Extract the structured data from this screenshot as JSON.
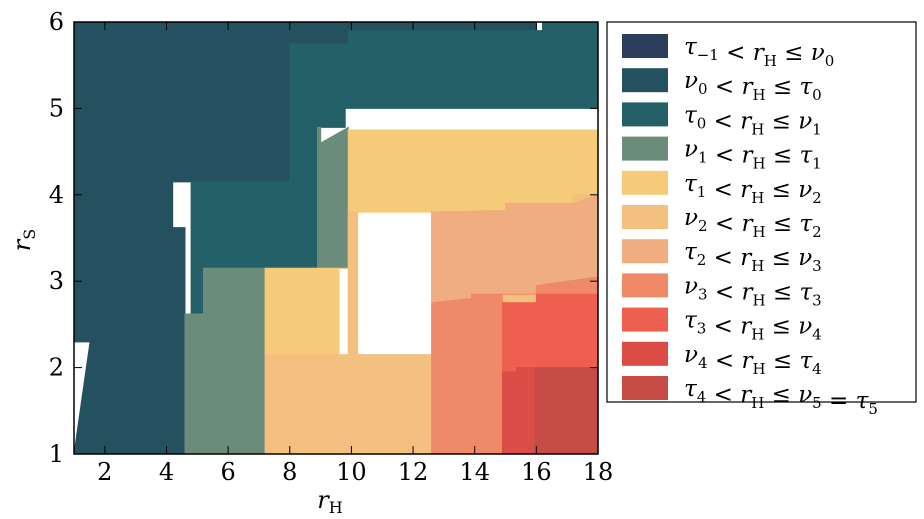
{
  "chart_data": {
    "type": "area",
    "title": "",
    "xlabel": "r_H",
    "ylabel": "r_S",
    "xlim": [
      1,
      18
    ],
    "ylim": [
      1,
      6
    ],
    "xticks": [
      "2",
      "4",
      "6",
      "8",
      "10",
      "12",
      "14",
      "16",
      "18"
    ],
    "yticks": [
      "1",
      "2",
      "3",
      "4",
      "5",
      "6"
    ],
    "legend_position": "right",
    "series": [
      {
        "name": "τ−1 < rH ≤ ν0",
        "color": "#2c3e5a"
      },
      {
        "name": "ν0 < rH ≤ τ0",
        "color": "#24505f"
      },
      {
        "name": "τ0 < rH ≤ ν1",
        "color": "#236068"
      },
      {
        "name": "ν1 < rH ≤ τ1",
        "color": "#6b8c7b"
      },
      {
        "name": "τ1 < rH ≤ ν2",
        "color": "#f5ca78"
      },
      {
        "name": "ν2 < rH ≤ τ2",
        "color": "#f4c07f"
      },
      {
        "name": "τ2 < rH ≤ ν3",
        "color": "#f0ad80"
      },
      {
        "name": "ν3 < rH ≤ τ3",
        "color": "#ef8a68"
      },
      {
        "name": "τ3 < rH ≤ ν4",
        "color": "#ef5f50"
      },
      {
        "name": "ν4 < rH ≤ τ4",
        "color": "#dd4d47"
      },
      {
        "name": "τ4 < rH ≤ ν5 = τ5",
        "color": "#c84c46"
      }
    ],
    "regions": [
      {
        "series": 0,
        "points": [
          [
            1,
            2.3
          ],
          [
            2.05,
            2.3
          ],
          [
            2.05,
            3.62
          ],
          [
            4.2,
            3.62
          ],
          [
            4.2,
            4.15
          ],
          [
            8,
            4.15
          ],
          [
            8,
            5.75
          ],
          [
            9.9,
            5.75
          ],
          [
            9.9,
            5.9
          ],
          [
            13.9,
            5.9
          ],
          [
            13.9,
            6
          ],
          [
            1,
            6
          ]
        ]
      },
      {
        "series": 1,
        "points": [
          [
            1,
            1
          ],
          [
            4.6,
            1
          ],
          [
            4.6,
            3.62
          ],
          [
            4.2,
            3.62
          ],
          [
            4.2,
            4.15
          ],
          [
            8,
            4.15
          ],
          [
            8,
            5.75
          ],
          [
            9.9,
            5.75
          ],
          [
            9.9,
            5.9
          ],
          [
            16,
            5.9
          ],
          [
            16,
            6
          ],
          [
            1,
            6
          ],
          [
            1,
            2.3
          ],
          [
            2.05,
            2.3
          ],
          [
            2.05,
            3.62
          ]
        ]
      },
      {
        "series": 2,
        "points": [
          [
            4.8,
            2.6
          ],
          [
            5.2,
            2.62
          ],
          [
            5.2,
            3.15
          ],
          [
            9.0,
            3.15
          ],
          [
            9.0,
            4.78
          ],
          [
            9.8,
            4.78
          ],
          [
            9.8,
            5.0
          ],
          [
            18,
            5.0
          ],
          [
            18,
            6
          ],
          [
            16.2,
            6
          ],
          [
            16.2,
            5.9
          ],
          [
            9.9,
            5.9
          ],
          [
            9.9,
            5.75
          ],
          [
            8,
            5.75
          ],
          [
            8,
            4.15
          ],
          [
            4.8,
            4.15
          ]
        ]
      },
      {
        "series": 3,
        "points": [
          [
            4.6,
            1
          ],
          [
            7.2,
            1
          ],
          [
            7.2,
            3.15
          ],
          [
            9.0,
            3.15
          ],
          [
            9.0,
            4.6
          ],
          [
            9.9,
            4.78
          ],
          [
            9.9,
            3.15
          ],
          [
            9.0,
            3.15
          ],
          [
            9.0,
            4.78
          ],
          [
            8.9,
            4.78
          ],
          [
            8.9,
            3.15
          ],
          [
            5.2,
            3.15
          ],
          [
            5.2,
            2.62
          ],
          [
            4.6,
            2.62
          ]
        ]
      },
      {
        "series": 4,
        "points": [
          [
            7.2,
            2.15
          ],
          [
            9.6,
            2.15
          ],
          [
            9.6,
            3.15
          ],
          [
            9.9,
            3.15
          ],
          [
            9.9,
            4.75
          ],
          [
            18,
            4.75
          ],
          [
            18,
            4.0
          ],
          [
            17.2,
            4.0
          ],
          [
            17.2,
            3.9
          ],
          [
            15.0,
            3.9
          ],
          [
            15.0,
            3.8
          ],
          [
            10.2,
            3.8
          ],
          [
            10.2,
            3.15
          ],
          [
            7.2,
            3.15
          ]
        ]
      },
      {
        "series": 5,
        "points": [
          [
            7.2,
            1
          ],
          [
            12.6,
            1
          ],
          [
            12.6,
            3.8
          ],
          [
            15.0,
            3.8
          ],
          [
            15.0,
            3.9
          ],
          [
            17.2,
            3.9
          ],
          [
            17.2,
            4.0
          ],
          [
            18,
            4.0
          ],
          [
            18,
            2.15
          ],
          [
            10.2,
            2.15
          ],
          [
            10.2,
            3.8
          ],
          [
            9.9,
            3.8
          ],
          [
            9.9,
            2.15
          ],
          [
            7.2,
            2.15
          ]
        ]
      },
      {
        "series": 6,
        "points": [
          [
            12.6,
            2.75
          ],
          [
            13.9,
            2.8
          ],
          [
            13.9,
            2.85
          ],
          [
            18,
            2.85
          ],
          [
            18,
            4.0
          ],
          [
            17.2,
            3.9
          ],
          [
            15.0,
            3.9
          ],
          [
            15.0,
            3.82
          ],
          [
            12.6,
            3.8
          ]
        ]
      },
      {
        "series": 7,
        "points": [
          [
            12.6,
            1
          ],
          [
            14.9,
            1
          ],
          [
            14.9,
            2.85
          ],
          [
            16,
            2.85
          ],
          [
            16,
            2.95
          ],
          [
            18,
            3.05
          ],
          [
            18,
            2.85
          ],
          [
            13.9,
            2.85
          ],
          [
            13.9,
            2.8
          ],
          [
            12.6,
            2.75
          ]
        ]
      },
      {
        "series": 8,
        "points": [
          [
            14.9,
            1.95
          ],
          [
            15.35,
            1.95
          ],
          [
            15.35,
            2.0
          ],
          [
            16,
            2.0
          ],
          [
            18,
            2.0
          ],
          [
            18,
            2.85
          ],
          [
            16,
            2.85
          ],
          [
            16,
            2.75
          ],
          [
            14.9,
            2.75
          ]
        ]
      },
      {
        "series": 9,
        "points": [
          [
            14.9,
            1
          ],
          [
            15.95,
            1
          ],
          [
            15.95,
            2.0
          ],
          [
            15.35,
            2.0
          ],
          [
            15.35,
            1.95
          ],
          [
            14.9,
            1.95
          ]
        ]
      },
      {
        "series": 10,
        "points": [
          [
            15.95,
            1
          ],
          [
            18,
            1
          ],
          [
            18,
            2.0
          ],
          [
            15.95,
            2.0
          ]
        ]
      }
    ]
  }
}
